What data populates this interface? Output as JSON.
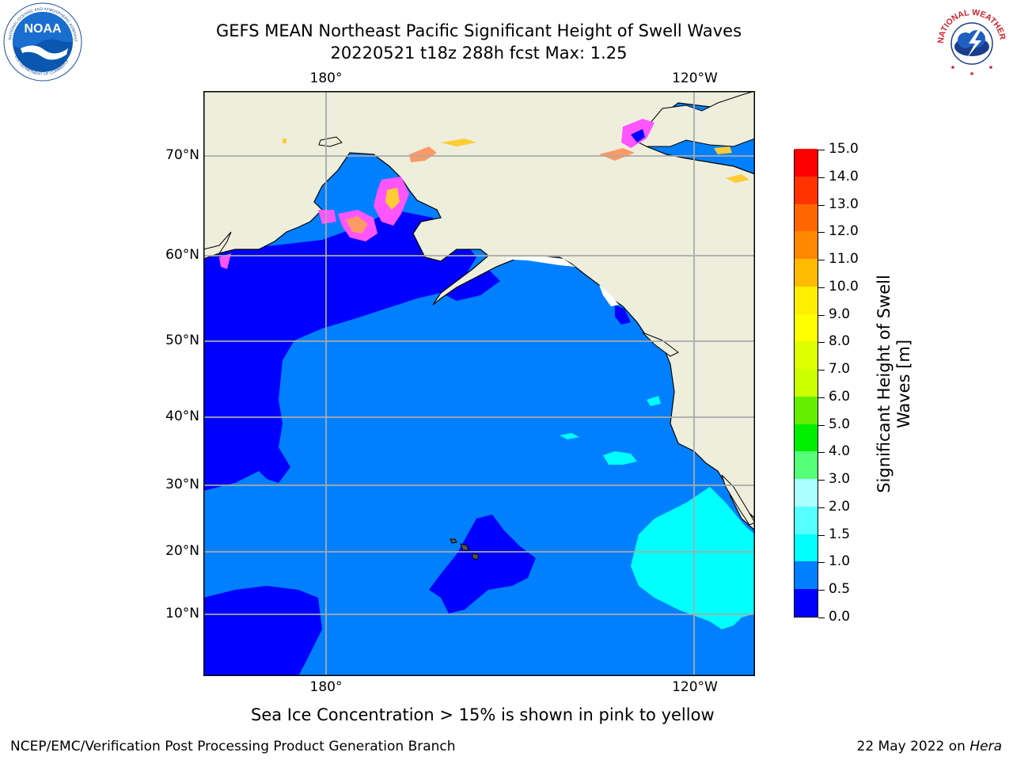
{
  "title": {
    "line1": "GEFS MEAN Northeast Pacific Significant Height of Swell Waves",
    "line2": "20220521 t18z 288h fcst   Max: 1.25"
  },
  "logos": {
    "left": {
      "name": "noaa-logo",
      "text": "NOAA",
      "ring_text": "NATIONAL OCEANIC AND ATMOSPHERIC ADMINISTRATION · U.S. DEPARTMENT OF COMMERCE"
    },
    "right": {
      "name": "nws-logo",
      "ring_text": "NATIONAL WEATHER SERVICE"
    }
  },
  "map": {
    "projection": "cylindrical",
    "lon_labels_top": [
      "180°",
      "120°W"
    ],
    "lon_labels_bottom": [
      "180°",
      "120°W"
    ],
    "lat_labels": [
      "70°N",
      "60°N",
      "50°N",
      "40°N",
      "30°N",
      "20°N",
      "10°N"
    ],
    "grid": true,
    "land_color": "#eeeedd",
    "ocean_default_color": "#0080ff",
    "low_swell_color": "#0000ff",
    "ice_colors": [
      "#ff55ff",
      "#ff9966",
      "#ffcc33"
    ]
  },
  "colorbar": {
    "title": "Significant Height of Swell Waves [m]",
    "title_lines": [
      "Significant Height of Swell",
      "Waves [m]"
    ],
    "labels": [
      "0.0",
      "0.5",
      "1.0",
      "1.5",
      "2.0",
      "3.0",
      "4.0",
      "5.0",
      "6.0",
      "7.0",
      "8.0",
      "9.0",
      "10.0",
      "11.0",
      "12.0",
      "13.0",
      "14.0",
      "15.0"
    ],
    "colors": [
      "#0000ff",
      "#0080ff",
      "#00ffff",
      "#55ffff",
      "#aaffff",
      "#55ff77",
      "#00ee00",
      "#66ee00",
      "#ccff00",
      "#ddff00",
      "#ffff00",
      "#ffee00",
      "#ffbb00",
      "#ff8800",
      "#ff6600",
      "#ff3300",
      "#ff0000"
    ]
  },
  "subcaption": "Sea Ice Concentration > 15% is shown in pink to yellow",
  "footer": {
    "left": "NCEP/EMC/Verification Post Processing Product Generation Branch",
    "right_prefix": "22 May 2022 on ",
    "right_italic": "Hera"
  }
}
